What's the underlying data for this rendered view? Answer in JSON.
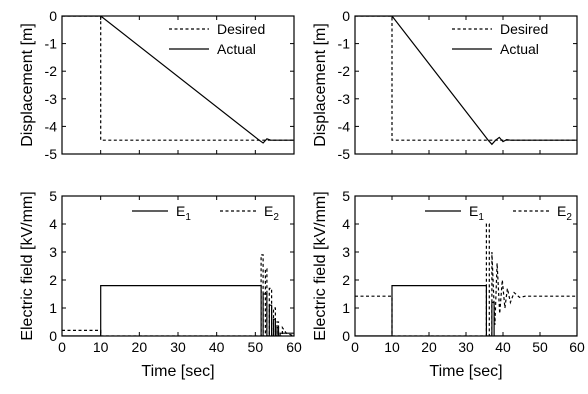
{
  "chart_data": [
    {
      "type": "line",
      "panel": "top-left",
      "ylabel": "Displacement [m]",
      "xlim": [
        0,
        60
      ],
      "ylim": [
        -5,
        0
      ],
      "yticks": [
        "0",
        "-1",
        "-2",
        "-3",
        "-4",
        "-5"
      ],
      "legend_position": "top-right",
      "series": [
        {
          "name": "Desired",
          "style": "dashed",
          "x": [
            0,
            10,
            10,
            60
          ],
          "y": [
            0,
            0,
            -4.5,
            -4.5
          ]
        },
        {
          "name": "Actual",
          "style": "solid",
          "x": [
            0,
            10,
            51,
            52,
            53,
            54,
            60
          ],
          "y": [
            0,
            0,
            -4.5,
            -4.6,
            -4.45,
            -4.5,
            -4.5
          ]
        }
      ]
    },
    {
      "type": "line",
      "panel": "top-right",
      "ylabel": "Displacement [m]",
      "xlim": [
        0,
        60
      ],
      "ylim": [
        -5,
        0
      ],
      "yticks": [
        "0",
        "-1",
        "-2",
        "-3",
        "-4",
        "-5"
      ],
      "legend_position": "top-right",
      "series": [
        {
          "name": "Desired",
          "style": "dashed",
          "x": [
            0,
            10,
            10,
            60
          ],
          "y": [
            0,
            0,
            -4.5,
            -4.5
          ]
        },
        {
          "name": "Actual",
          "style": "solid",
          "x": [
            0,
            10,
            36,
            37,
            38,
            39,
            40,
            41,
            42,
            60
          ],
          "y": [
            0,
            0,
            -4.5,
            -4.65,
            -4.5,
            -4.4,
            -4.55,
            -4.48,
            -4.5,
            -4.5
          ]
        }
      ]
    },
    {
      "type": "line",
      "panel": "bottom-left",
      "xlabel": "Time [sec]",
      "ylabel": "Electric field [kV/mm]",
      "xlim": [
        0,
        60
      ],
      "ylim": [
        0,
        5
      ],
      "xticks": [
        "0",
        "10",
        "20",
        "30",
        "40",
        "50",
        "60"
      ],
      "yticks": [
        "0",
        "1",
        "2",
        "3",
        "4",
        "5"
      ],
      "legend_position": "top",
      "series": [
        {
          "name": "E1",
          "name_base": "E",
          "name_sub": "1",
          "style": "solid",
          "x": [
            0,
            10,
            10,
            51.5,
            51.5,
            52,
            52,
            53,
            53,
            53.6,
            53.6,
            54.2,
            54.2,
            54.7,
            54.7,
            55.2,
            55.2,
            55.6,
            55.6,
            56,
            56,
            56.4,
            56.4,
            60
          ],
          "y": [
            0,
            0,
            1.8,
            1.8,
            0,
            0,
            1.5,
            1.5,
            0,
            0,
            1.1,
            1.1,
            0,
            0,
            0.6,
            0.6,
            0,
            0,
            0.3,
            0.3,
            0,
            0,
            0.1,
            0.1
          ]
        },
        {
          "name": "E2",
          "name_base": "E",
          "name_sub": "2",
          "style": "dashed",
          "x": [
            0,
            10,
            10,
            51.5,
            51.5,
            52,
            52,
            52.6,
            52.6,
            53,
            53,
            53.6,
            53.6,
            54.2,
            54.2,
            54.7,
            54.7,
            55.2,
            55.2,
            55.6,
            55.6,
            56,
            56,
            57,
            57,
            58,
            60
          ],
          "y": [
            0.2,
            0.2,
            0,
            0,
            2.9,
            2.9,
            0,
            0,
            2.4,
            2.4,
            0,
            0,
            1.7,
            1.7,
            0,
            0,
            1.0,
            1.0,
            0,
            0,
            0.5,
            0.5,
            0,
            0,
            0.3,
            0.1,
            0
          ]
        }
      ]
    },
    {
      "type": "line",
      "panel": "bottom-right",
      "xlabel": "Time [sec]",
      "ylabel": "Electric field [kV/mm]",
      "xlim": [
        0,
        60
      ],
      "ylim": [
        0,
        5
      ],
      "xticks": [
        "0",
        "10",
        "20",
        "30",
        "40",
        "50",
        "60"
      ],
      "yticks": [
        "0",
        "1",
        "2",
        "3",
        "4",
        "5"
      ],
      "legend_position": "top",
      "series": [
        {
          "name": "E1",
          "name_base": "E",
          "name_sub": "1",
          "style": "solid",
          "x": [
            0,
            10,
            10,
            35.5,
            35.5,
            37,
            37,
            37.6,
            37.6,
            38.3,
            38.3,
            60
          ],
          "y": [
            0,
            0,
            1.8,
            1.8,
            0,
            0,
            1.2,
            1.2,
            0,
            0,
            0,
            0
          ]
        },
        {
          "name": "E2",
          "name_base": "E",
          "name_sub": "2",
          "style": "dashed",
          "x": [
            0,
            10,
            10,
            35.5,
            35.5,
            36.3,
            36.3,
            37,
            37,
            37.8,
            38.4,
            39.1,
            39.8,
            40.5,
            41.2,
            42,
            43,
            44.5,
            46,
            60
          ],
          "y": [
            1.42,
            1.42,
            0,
            0,
            4.0,
            4.0,
            0,
            0,
            3.0,
            0.4,
            2.6,
            0.8,
            2.0,
            1.0,
            1.7,
            1.2,
            1.55,
            1.38,
            1.42,
            1.42
          ]
        }
      ]
    }
  ]
}
